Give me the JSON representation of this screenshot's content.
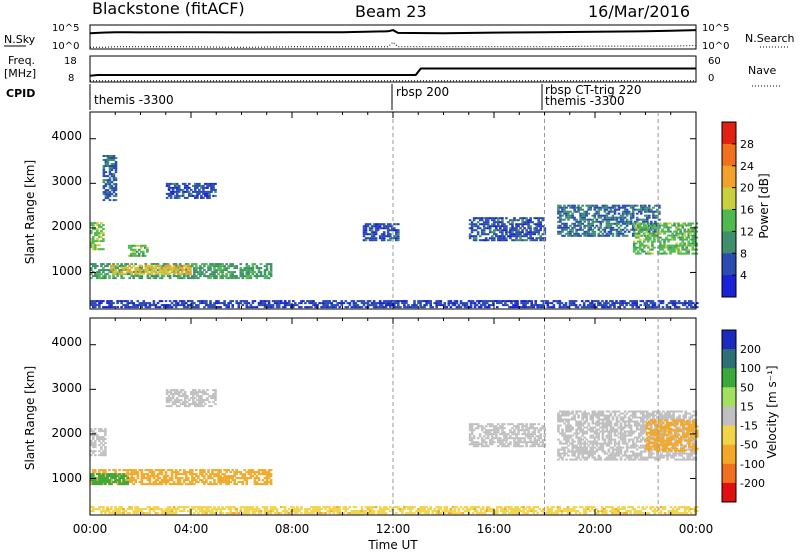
{
  "header": {
    "station": "Blackstone (fitACF)",
    "beam": "Beam 23",
    "date": "16/Mar/2016"
  },
  "status_panel": {
    "left_axis_label": "N.Sky",
    "left_ticks": [
      "10^5",
      "10^0"
    ],
    "right_axis_label": "N.Search",
    "right_ticks": [
      "10^5",
      "10^0"
    ]
  },
  "freq_panel": {
    "left_axis_label_1": "Freq.",
    "left_axis_label_2": "[MHz]",
    "left_ticks": [
      "18",
      "8"
    ],
    "right_axis_label": "Nave",
    "right_ticks": [
      "60",
      "0"
    ]
  },
  "cpid_panel": {
    "label": "CPID",
    "modes": [
      {
        "start_hour": 0.0,
        "label": "themis -3300"
      },
      {
        "start_hour": 12.0,
        "label": "rbsp 200"
      },
      {
        "start_hour": 18.0,
        "label": "rbsp CT-trig 220"
      },
      {
        "start_hour": 18.0,
        "label": "themis -3300"
      }
    ]
  },
  "time_axis": {
    "label": "Time UT",
    "ticks": [
      "00:00",
      "04:00",
      "08:00",
      "12:00",
      "16:00",
      "20:00",
      "00:00"
    ]
  },
  "power_panel": {
    "ylabel": "Slant Range [km]",
    "yticks": [
      "1000",
      "2000",
      "3000",
      "4000"
    ],
    "colorbar_label": "Power [dB]",
    "colorbar_ticks": [
      "4",
      "8",
      "12",
      "16",
      "20",
      "24",
      "28"
    ]
  },
  "velocity_panel": {
    "ylabel": "Slant Range [km]",
    "yticks": [
      "1000",
      "2000",
      "3000",
      "4000"
    ],
    "colorbar_label": "Velocity [m s⁻¹]",
    "colorbar_ticks": [
      "200",
      "100",
      "50",
      "15",
      "-15",
      "-50",
      "-100",
      "-200"
    ]
  },
  "chart_data": [
    {
      "type": "line",
      "title": "N.Sky / N.Search",
      "x_range_hours": [
        0,
        24
      ],
      "series": [
        {
          "name": "N.Sky",
          "x": [
            0,
            0.5,
            1,
            2,
            4,
            6,
            8,
            10,
            11.8,
            12,
            12.2,
            14,
            16,
            18,
            20,
            22,
            23,
            24
          ],
          "y": [
            5000,
            7000,
            9000,
            8000,
            9000,
            8000,
            9000,
            9000,
            15000,
            30000,
            6000,
            5000,
            7000,
            9000,
            12000,
            15000,
            20000,
            30000
          ]
        },
        {
          "name": "N.Search",
          "x": [
            0,
            0.5,
            1,
            2,
            4,
            6,
            8,
            10,
            11.8,
            12,
            12.2,
            14,
            16,
            18,
            20,
            22,
            23,
            24
          ],
          "y": [
            1.5,
            1.5,
            2,
            2,
            2,
            1.5,
            2,
            2,
            2,
            30,
            2,
            2,
            2,
            2,
            3,
            3,
            3,
            4
          ]
        }
      ]
    },
    {
      "type": "line",
      "title": "Freq / Nave",
      "x_range_hours": [
        0,
        24
      ],
      "y_range_freq_mhz": [
        8,
        18
      ],
      "y_range_nave": [
        0,
        60
      ],
      "series": [
        {
          "name": "Freq.",
          "x": [
            0,
            0.3,
            12.9,
            13.1,
            24
          ],
          "y": [
            10.2,
            10.5,
            10.5,
            13.2,
            13.2
          ]
        },
        {
          "name": "Nave",
          "x": [
            0,
            24
          ],
          "y": [
            0.5,
            0.5
          ]
        }
      ]
    },
    {
      "type": "heatmap",
      "title": "Power [dB]",
      "x_range_hours": [
        0,
        24
      ],
      "y_range_km": [
        180,
        4600
      ],
      "colorscale": [
        {
          "value": 2,
          "color": "#1a22d8"
        },
        {
          "value": 6,
          "color": "#2a4bb0"
        },
        {
          "value": 10,
          "color": "#3f8f6c"
        },
        {
          "value": 14,
          "color": "#4fb84f"
        },
        {
          "value": 18,
          "color": "#c9d040"
        },
        {
          "value": 22,
          "color": "#f2a22a"
        },
        {
          "value": 26,
          "color": "#f0701e"
        },
        {
          "value": 30,
          "color": "#e02010"
        }
      ],
      "regions": [
        {
          "t": [
            0.0,
            7.2
          ],
          "r": [
            850,
            1200
          ],
          "value": 11
        },
        {
          "t": [
            0.8,
            4.0
          ],
          "r": [
            950,
            1150
          ],
          "value": 20
        },
        {
          "t": [
            0.0,
            0.5
          ],
          "r": [
            1500,
            2100
          ],
          "value": 15
        },
        {
          "t": [
            1.5,
            2.3
          ],
          "r": [
            1350,
            1600
          ],
          "value": 14
        },
        {
          "t": [
            0.5,
            1.0
          ],
          "r": [
            2600,
            3600
          ],
          "value": 7
        },
        {
          "t": [
            3.0,
            5.0
          ],
          "r": [
            2650,
            3000
          ],
          "value": 6
        },
        {
          "t": [
            10.8,
            12.2
          ],
          "r": [
            1700,
            2100
          ],
          "value": 6
        },
        {
          "t": [
            15.0,
            18.0
          ],
          "r": [
            1700,
            2200
          ],
          "value": 6
        },
        {
          "t": [
            18.5,
            22.5
          ],
          "r": [
            1800,
            2500
          ],
          "value": 8
        },
        {
          "t": [
            21.5,
            24.0
          ],
          "r": [
            1400,
            2100
          ],
          "value": 14
        },
        {
          "t": [
            0.0,
            24.0
          ],
          "r": [
            200,
            350
          ],
          "value": 5
        }
      ]
    },
    {
      "type": "heatmap",
      "title": "Velocity [m s⁻¹]",
      "x_range_hours": [
        0,
        24
      ],
      "y_range_km": [
        180,
        4600
      ],
      "colorscale": [
        {
          "value": 200,
          "color": "#1c2bbf"
        },
        {
          "value": 100,
          "color": "#2e6f75"
        },
        {
          "value": 50,
          "color": "#3aa83a"
        },
        {
          "value": 15,
          "color": "#a4e060"
        },
        {
          "value": 0,
          "color": "#c0c0c0"
        },
        {
          "value": -15,
          "color": "#f2d44a"
        },
        {
          "value": -50,
          "color": "#f2a92a"
        },
        {
          "value": -100,
          "color": "#f07020"
        },
        {
          "value": -200,
          "color": "#e01010"
        }
      ],
      "regions": [
        {
          "t": [
            0.0,
            7.2
          ],
          "r": [
            850,
            1200
          ],
          "value": -40
        },
        {
          "t": [
            0.0,
            1.5
          ],
          "r": [
            850,
            1100
          ],
          "value": 60
        },
        {
          "t": [
            0.0,
            0.6
          ],
          "r": [
            1500,
            2100
          ],
          "value": 0
        },
        {
          "t": [
            3.0,
            5.0
          ],
          "r": [
            2600,
            3000
          ],
          "value": 0
        },
        {
          "t": [
            15.0,
            18.0
          ],
          "r": [
            1700,
            2200
          ],
          "value": 0
        },
        {
          "t": [
            18.5,
            24.0
          ],
          "r": [
            1400,
            2500
          ],
          "value": 0
        },
        {
          "t": [
            22.0,
            24.0
          ],
          "r": [
            1600,
            2300
          ],
          "value": -40
        },
        {
          "t": [
            0.0,
            24.0
          ],
          "r": [
            200,
            350
          ],
          "value": -30
        }
      ]
    }
  ]
}
